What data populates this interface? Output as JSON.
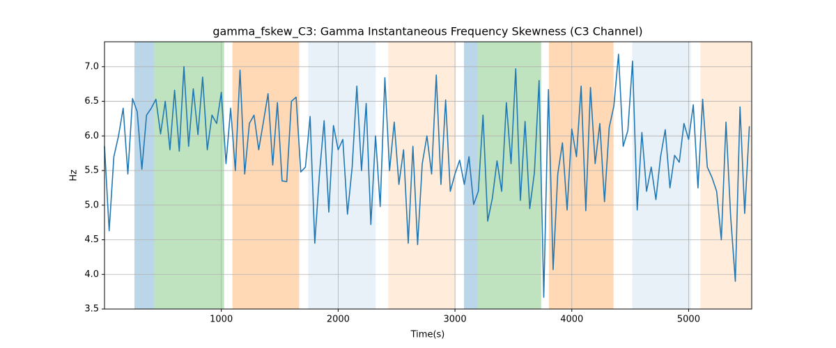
{
  "chart_data": {
    "type": "line",
    "title": "gamma_fskew_C3: Gamma Instantaneous Frequency Skewness (C3 Channel)",
    "x_label": "Time(s)",
    "y_label": "Hz",
    "xlim": [
      0,
      5540
    ],
    "ylim": [
      3.5,
      7.36
    ],
    "xticks": [
      1000,
      2000,
      3000,
      4000,
      5000
    ],
    "yticks": [
      3.5,
      {
        "value": 4,
        "label": "4.0"
      },
      4.5,
      {
        "value": 5,
        "label": "5.0"
      },
      5.5,
      {
        "value": 6,
        "label": "6.0"
      },
      6.5,
      {
        "value": 7,
        "label": "7.0"
      }
    ],
    "grid": true,
    "spans": [
      {
        "start": 256,
        "end": 423,
        "color": "#1f77b4",
        "opacity": 0.3
      },
      {
        "start": 423,
        "end": 1024,
        "color": "#2ca02c",
        "opacity": 0.3
      },
      {
        "start": 1095,
        "end": 1667,
        "color": "#ff7f0e",
        "opacity": 0.3
      },
      {
        "start": 1744,
        "end": 2321,
        "color": "#1f77b4",
        "opacity": 0.1
      },
      {
        "start": 2429,
        "end": 3006,
        "color": "#ff7f0e",
        "opacity": 0.15
      },
      {
        "start": 3077,
        "end": 3196,
        "color": "#1f77b4",
        "opacity": 0.3
      },
      {
        "start": 3196,
        "end": 3738,
        "color": "#2ca02c",
        "opacity": 0.3
      },
      {
        "start": 3804,
        "end": 4357,
        "color": "#ff7f0e",
        "opacity": 0.3
      },
      {
        "start": 4518,
        "end": 5018,
        "color": "#1f77b4",
        "opacity": 0.1
      },
      {
        "start": 5101,
        "end": 5536,
        "color": "#ff7f0e",
        "opacity": 0.15
      }
    ],
    "x": [
      0,
      40,
      80,
      120,
      160,
      200,
      240,
      280,
      320,
      360,
      400,
      440,
      480,
      520,
      560,
      600,
      640,
      680,
      720,
      760,
      800,
      840,
      880,
      920,
      960,
      1000,
      1040,
      1080,
      1120,
      1160,
      1200,
      1240,
      1280,
      1320,
      1360,
      1400,
      1440,
      1480,
      1520,
      1560,
      1600,
      1640,
      1680,
      1720,
      1760,
      1800,
      1840,
      1880,
      1920,
      1960,
      2000,
      2040,
      2080,
      2120,
      2160,
      2200,
      2240,
      2280,
      2320,
      2360,
      2400,
      2440,
      2480,
      2520,
      2560,
      2600,
      2640,
      2680,
      2720,
      2760,
      2800,
      2840,
      2880,
      2920,
      2960,
      3000,
      3040,
      3080,
      3120,
      3160,
      3200,
      3240,
      3280,
      3320,
      3360,
      3400,
      3440,
      3480,
      3520,
      3560,
      3600,
      3640,
      3680,
      3720,
      3760,
      3800,
      3840,
      3880,
      3920,
      3960,
      4000,
      4040,
      4080,
      4120,
      4160,
      4200,
      4240,
      4280,
      4320,
      4360,
      4400,
      4440,
      4480,
      4520,
      4560,
      4600,
      4640,
      4680,
      4720,
      4760,
      4800,
      4840,
      4880,
      4920,
      4960,
      5000,
      5040,
      5080,
      5120,
      5160,
      5200,
      5240,
      5280,
      5320,
      5360,
      5400,
      5440,
      5480,
      5520
    ],
    "series": [
      {
        "color": "#1f77b4",
        "values": [
          5.85,
          4.63,
          5.7,
          6.0,
          6.4,
          5.45,
          6.54,
          6.35,
          5.52,
          6.3,
          6.4,
          6.53,
          6.03,
          6.5,
          5.8,
          6.66,
          5.78,
          7.0,
          5.85,
          6.68,
          6.02,
          6.85,
          5.8,
          6.3,
          6.18,
          6.63,
          5.6,
          6.4,
          5.5,
          6.95,
          5.45,
          6.18,
          6.3,
          5.8,
          6.2,
          6.61,
          5.58,
          6.48,
          5.35,
          5.34,
          6.5,
          6.56,
          5.48,
          5.55,
          6.28,
          4.45,
          5.45,
          6.22,
          4.9,
          6.15,
          5.8,
          5.95,
          4.87,
          5.55,
          6.72,
          5.5,
          6.47,
          4.72,
          6.0,
          4.98,
          6.84,
          5.5,
          6.2,
          5.3,
          5.8,
          4.45,
          5.85,
          4.43,
          5.6,
          6.0,
          5.45,
          6.88,
          5.3,
          6.52,
          5.2,
          5.45,
          5.65,
          5.3,
          5.7,
          5.01,
          5.2,
          6.3,
          4.77,
          5.1,
          5.64,
          5.2,
          6.48,
          5.6,
          6.97,
          5.07,
          6.21,
          4.95,
          5.47,
          6.8,
          3.67,
          6.67,
          4.07,
          5.45,
          5.9,
          4.93,
          6.1,
          5.7,
          6.72,
          4.92,
          6.7,
          5.6,
          6.18,
          5.05,
          6.12,
          6.43,
          7.18,
          5.85,
          6.08,
          7.08,
          4.93,
          6.05,
          5.2,
          5.55,
          5.08,
          5.7,
          6.09,
          5.25,
          5.72,
          5.62,
          6.18,
          5.95,
          6.45,
          5.25,
          6.53,
          5.55,
          5.4,
          5.2,
          4.5,
          6.2,
          4.83,
          3.9,
          6.42,
          4.88,
          6.14
        ]
      }
    ]
  }
}
